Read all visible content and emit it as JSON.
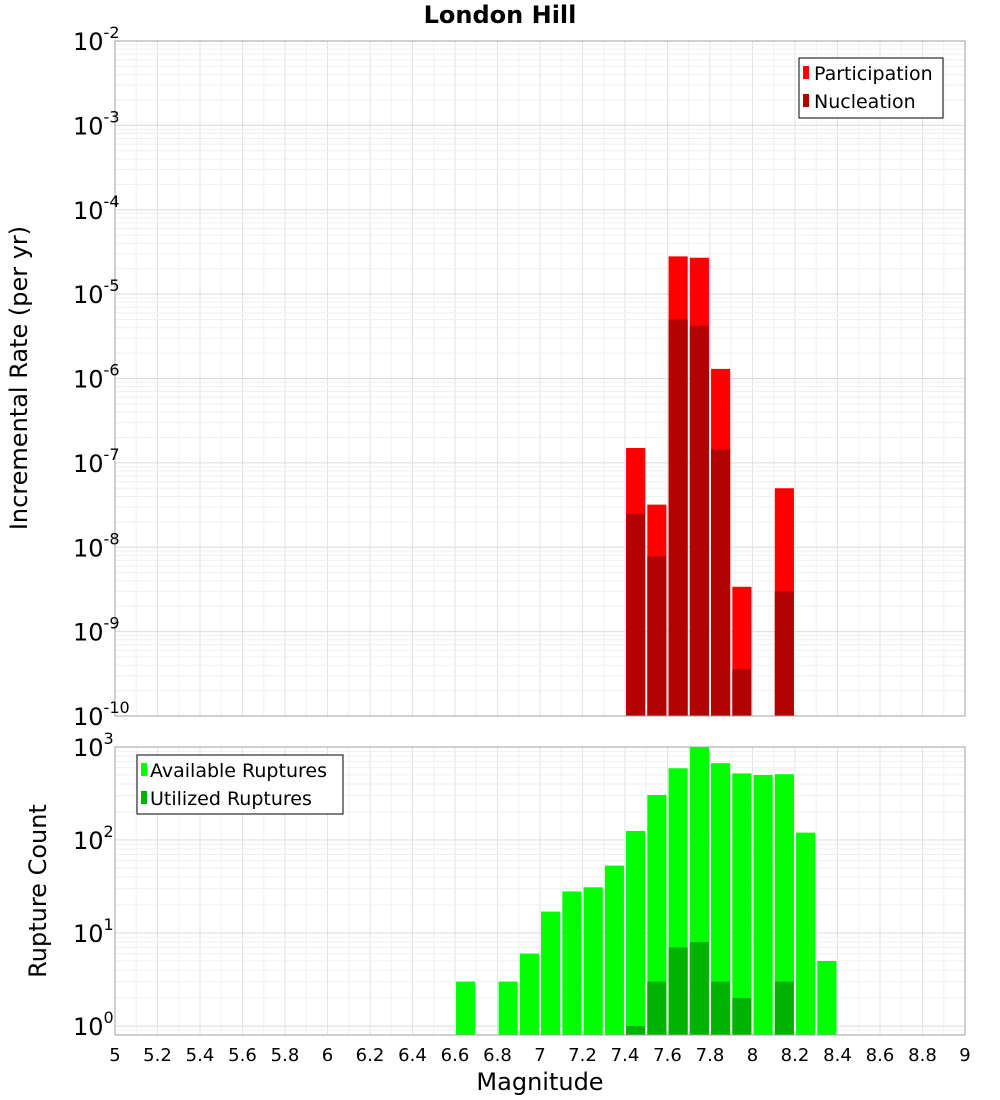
{
  "chart_data": [
    {
      "type": "bar",
      "title": "London Hill",
      "xlabel": "",
      "ylabel": "Incremental Rate (per yr)",
      "yscale": "log",
      "xlim": [
        5,
        9
      ],
      "ylim": [
        1e-10,
        0.01
      ],
      "grid": true,
      "legend_position": "top-right",
      "x": [
        7.45,
        7.55,
        7.65,
        7.75,
        7.85,
        7.95,
        8.15
      ],
      "series": [
        {
          "name": "Participation",
          "color": "#ff0000",
          "values": [
            1.5e-07,
            3.2e-08,
            2.8e-05,
            2.7e-05,
            1.3e-06,
            3.4e-09,
            5e-08
          ]
        },
        {
          "name": "Nucleation",
          "color": "#b30000",
          "values": [
            2.5e-08,
            7.8e-09,
            5e-06,
            4.2e-06,
            1.45e-07,
            3.6e-10,
            3e-09
          ]
        }
      ],
      "y_ticks": [
        {
          "base": "10",
          "exp": "-2"
        },
        {
          "base": "10",
          "exp": "-3"
        },
        {
          "base": "10",
          "exp": "-4"
        },
        {
          "base": "10",
          "exp": "-5"
        },
        {
          "base": "10",
          "exp": "-6"
        },
        {
          "base": "10",
          "exp": "-7"
        },
        {
          "base": "10",
          "exp": "-8"
        },
        {
          "base": "10",
          "exp": "-9"
        },
        {
          "base": "10",
          "exp": "-10"
        }
      ]
    },
    {
      "type": "bar",
      "title": "",
      "xlabel": "Magnitude",
      "ylabel": "Rupture Count",
      "yscale": "log",
      "xlim": [
        5,
        9
      ],
      "ylim": [
        0.8,
        1000
      ],
      "grid": true,
      "legend_position": "top-left",
      "x": [
        6.65,
        6.85,
        6.95,
        7.05,
        7.15,
        7.25,
        7.35,
        7.45,
        7.55,
        7.65,
        7.75,
        7.85,
        7.95,
        8.05,
        8.15,
        8.25,
        8.35
      ],
      "series": [
        {
          "name": "Available Ruptures",
          "color": "#00ff00",
          "values": [
            3,
            3,
            6,
            17,
            28,
            31,
            53,
            125,
            305,
            590,
            1000,
            670,
            520,
            500,
            510,
            120,
            5
          ]
        },
        {
          "name": "Utilized Ruptures",
          "color": "#00b300",
          "values": [
            null,
            null,
            null,
            null,
            null,
            null,
            null,
            1,
            3,
            7,
            8,
            3,
            2,
            null,
            3,
            null,
            null
          ]
        }
      ],
      "y_ticks": [
        {
          "base": "10",
          "exp": "3"
        },
        {
          "base": "10",
          "exp": "2"
        },
        {
          "base": "10",
          "exp": "1"
        },
        {
          "base": "10",
          "exp": "0"
        }
      ]
    }
  ],
  "x_ticks": [
    "5",
    "5.2",
    "5.4",
    "5.6",
    "5.8",
    "6",
    "6.2",
    "6.4",
    "6.6",
    "6.8",
    "7",
    "7.2",
    "7.4",
    "7.6",
    "7.8",
    "8",
    "8.2",
    "8.4",
    "8.6",
    "8.8",
    "9"
  ],
  "bar_width": 0.09
}
